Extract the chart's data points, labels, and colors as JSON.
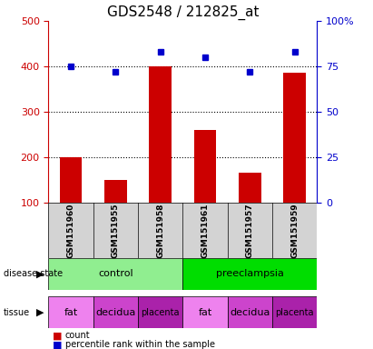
{
  "title": "GDS2548 / 212825_at",
  "samples": [
    "GSM151960",
    "GSM151955",
    "GSM151958",
    "GSM151961",
    "GSM151957",
    "GSM151959"
  ],
  "counts": [
    200,
    150,
    400,
    260,
    165,
    385
  ],
  "percentile_ranks": [
    75,
    72,
    83,
    80,
    72,
    83
  ],
  "ylim_left": [
    100,
    500
  ],
  "ylim_right": [
    0,
    100
  ],
  "yticks_left": [
    100,
    200,
    300,
    400,
    500
  ],
  "yticks_right": [
    0,
    25,
    50,
    75,
    100
  ],
  "bar_color": "#cc0000",
  "dot_color": "#0000cc",
  "disease_states": [
    {
      "label": "control",
      "span": [
        0,
        3
      ],
      "color": "#90ee90"
    },
    {
      "label": "preeclampsia",
      "span": [
        3,
        6
      ],
      "color": "#00dd00"
    }
  ],
  "tissues": [
    {
      "label": "fat",
      "span": [
        0,
        1
      ],
      "color": "#ee82ee"
    },
    {
      "label": "decidua",
      "span": [
        1,
        2
      ],
      "color": "#cc44cc"
    },
    {
      "label": "placenta",
      "span": [
        2,
        3
      ],
      "color": "#aa22aa"
    },
    {
      "label": "fat",
      "span": [
        3,
        4
      ],
      "color": "#ee82ee"
    },
    {
      "label": "decidua",
      "span": [
        4,
        5
      ],
      "color": "#cc44cc"
    },
    {
      "label": "placenta",
      "span": [
        5,
        6
      ],
      "color": "#aa22aa"
    }
  ],
  "grid_color": "black",
  "sample_box_color": "#d3d3d3",
  "title_fontsize": 11
}
